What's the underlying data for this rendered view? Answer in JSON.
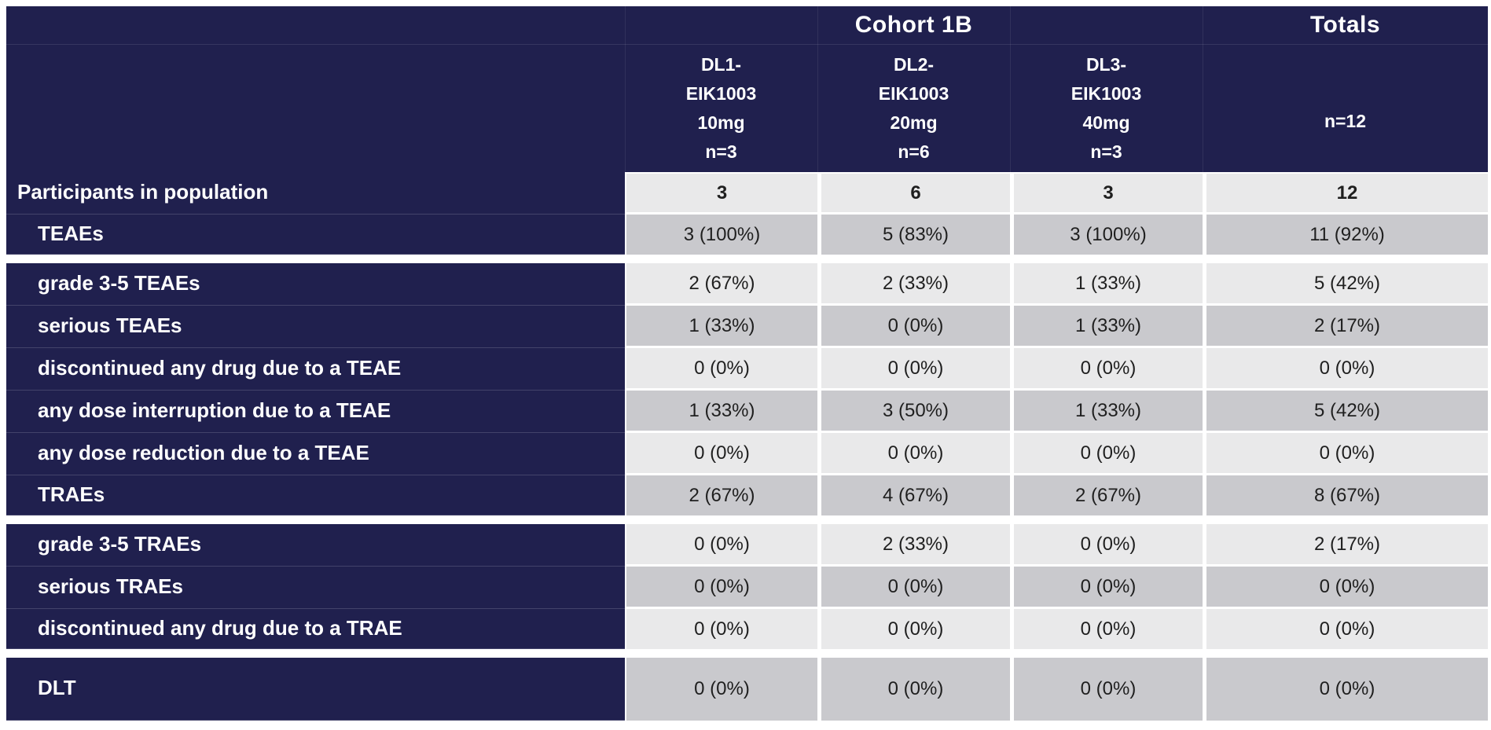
{
  "colors": {
    "navy": "#20204e",
    "row_light": "#e9e9ea",
    "row_dark": "#c9c9cd",
    "text_data": "#1f1f1f",
    "text_on_dark": "#ffffff"
  },
  "table": {
    "header": {
      "group_label": "Cohort 1B",
      "totals_label": "Totals",
      "columns": [
        {
          "id": "dl1-eik1003-10mg",
          "lines": [
            "DL1-",
            "EIK1003",
            "10mg",
            "n=3"
          ]
        },
        {
          "id": "dl2-eik1003-20mg",
          "lines": [
            "DL2-",
            "EIK1003",
            "20mg",
            "n=6"
          ]
        },
        {
          "id": "dl3-eik1003-40mg",
          "lines": [
            "DL3-",
            "EIK1003",
            "40mg",
            "n=3"
          ]
        },
        {
          "id": "totals",
          "lines": [
            "n=12"
          ]
        }
      ]
    },
    "rows": [
      {
        "label": "Participants in population",
        "indent": false,
        "bold_values": true,
        "shade": "light",
        "values": [
          "3",
          "6",
          "3",
          "12"
        ],
        "separator_after": false,
        "tall": false
      },
      {
        "label": "TEAEs",
        "indent": true,
        "bold_values": false,
        "shade": "dark",
        "values": [
          "3 (100%)",
          "5 (83%)",
          "3 (100%)",
          "11 (92%)"
        ],
        "separator_after": true,
        "tall": false
      },
      {
        "label": "grade 3-5 TEAEs",
        "indent": true,
        "bold_values": false,
        "shade": "light",
        "values": [
          "2 (67%)",
          "2 (33%)",
          "1 (33%)",
          "5 (42%)"
        ],
        "separator_after": false,
        "tall": false
      },
      {
        "label": "serious TEAEs",
        "indent": true,
        "bold_values": false,
        "shade": "dark",
        "values": [
          "1 (33%)",
          "0 (0%)",
          "1 (33%)",
          "2 (17%)"
        ],
        "separator_after": false,
        "tall": false
      },
      {
        "label": "discontinued any drug due to a TEAE",
        "indent": true,
        "bold_values": false,
        "shade": "light",
        "values": [
          "0 (0%)",
          "0 (0%)",
          "0 (0%)",
          "0 (0%)"
        ],
        "separator_after": false,
        "tall": false
      },
      {
        "label": "any dose interruption due to a TEAE",
        "indent": true,
        "bold_values": false,
        "shade": "dark",
        "values": [
          "1 (33%)",
          "3 (50%)",
          "1 (33%)",
          "5 (42%)"
        ],
        "separator_after": false,
        "tall": false
      },
      {
        "label": "any dose reduction due to a TEAE",
        "indent": true,
        "bold_values": false,
        "shade": "light",
        "values": [
          "0 (0%)",
          "0 (0%)",
          "0 (0%)",
          "0 (0%)"
        ],
        "separator_after": false,
        "tall": false
      },
      {
        "label": "TRAEs",
        "indent": true,
        "bold_values": false,
        "shade": "dark",
        "values": [
          "2 (67%)",
          "4 (67%)",
          "2 (67%)",
          "8 (67%)"
        ],
        "separator_after": true,
        "tall": false
      },
      {
        "label": "grade 3-5 TRAEs",
        "indent": true,
        "bold_values": false,
        "shade": "light",
        "values": [
          "0 (0%)",
          "2 (33%)",
          "0 (0%)",
          "2 (17%)"
        ],
        "separator_after": false,
        "tall": false
      },
      {
        "label": "serious TRAEs",
        "indent": true,
        "bold_values": false,
        "shade": "dark",
        "values": [
          "0 (0%)",
          "0 (0%)",
          "0 (0%)",
          "0 (0%)"
        ],
        "separator_after": false,
        "tall": false
      },
      {
        "label": "discontinued any drug due to a TRAE",
        "indent": true,
        "bold_values": false,
        "shade": "light",
        "values": [
          "0 (0%)",
          "0 (0%)",
          "0 (0%)",
          "0 (0%)"
        ],
        "separator_after": true,
        "tall": false
      },
      {
        "label": "DLT",
        "indent": true,
        "bold_values": false,
        "shade": "dark",
        "values": [
          "0 (0%)",
          "0 (0%)",
          "0 (0%)",
          "0 (0%)"
        ],
        "separator_after": false,
        "tall": true
      }
    ]
  }
}
